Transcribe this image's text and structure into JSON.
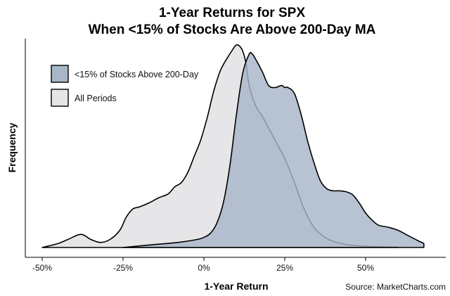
{
  "chart_data": {
    "type": "area",
    "title_line1": "1-Year Returns for SPX",
    "title_line2": "When <15% of Stocks Are Above 200-Day MA",
    "xlabel": "1-Year Return",
    "ylabel": "Frequency",
    "source": "Source:  MarketCharts.com",
    "xlim": [
      -50,
      70
    ],
    "ylim": [
      0,
      1
    ],
    "x_ticks": [
      -50,
      -25,
      0,
      25,
      50
    ],
    "x_tick_labels": [
      "-50%",
      "-25%",
      "0%",
      "25%",
      "50%"
    ],
    "grid": false,
    "legend_position": "top-left",
    "series": [
      {
        "name": "All Periods",
        "color": "#e6e6e8",
        "x": [
          -50,
          -45,
          -42,
          -38,
          -35,
          -32,
          -29,
          -26,
          -24,
          -22,
          -20,
          -17,
          -14,
          -11,
          -9,
          -7,
          -5,
          -3,
          -1,
          1,
          3,
          5,
          7,
          9,
          10,
          11,
          12,
          13,
          14,
          16,
          18,
          20,
          22,
          25,
          28,
          31,
          34,
          37,
          40,
          44,
          48,
          52,
          56,
          60
        ],
        "values": [
          0.0,
          0.02,
          0.04,
          0.065,
          0.04,
          0.025,
          0.04,
          0.085,
          0.15,
          0.19,
          0.2,
          0.22,
          0.245,
          0.265,
          0.3,
          0.32,
          0.37,
          0.45,
          0.53,
          0.64,
          0.77,
          0.87,
          0.93,
          0.98,
          1.0,
          0.995,
          0.97,
          0.91,
          0.8,
          0.7,
          0.65,
          0.59,
          0.53,
          0.44,
          0.32,
          0.19,
          0.1,
          0.055,
          0.03,
          0.015,
          0.008,
          0.005,
          0.003,
          0.002
        ]
      },
      {
        "name": "<15% of Stocks Above 200-Day",
        "color": "#a7b6c8",
        "x": [
          -25,
          -15,
          -8,
          -2,
          0,
          2,
          4,
          6,
          8,
          10,
          12,
          14,
          15,
          16,
          18,
          20,
          22,
          24,
          25,
          26,
          28,
          30,
          32,
          34,
          36,
          38,
          40,
          42,
          44,
          46,
          48,
          50,
          52,
          54,
          57,
          60,
          63,
          66,
          68
        ],
        "values": [
          0.0,
          0.015,
          0.025,
          0.04,
          0.05,
          0.07,
          0.12,
          0.22,
          0.4,
          0.65,
          0.86,
          0.955,
          0.955,
          0.93,
          0.87,
          0.8,
          0.79,
          0.8,
          0.79,
          0.79,
          0.76,
          0.66,
          0.53,
          0.42,
          0.33,
          0.29,
          0.28,
          0.28,
          0.275,
          0.26,
          0.22,
          0.17,
          0.135,
          0.11,
          0.1,
          0.085,
          0.06,
          0.035,
          0.02
        ]
      }
    ]
  }
}
